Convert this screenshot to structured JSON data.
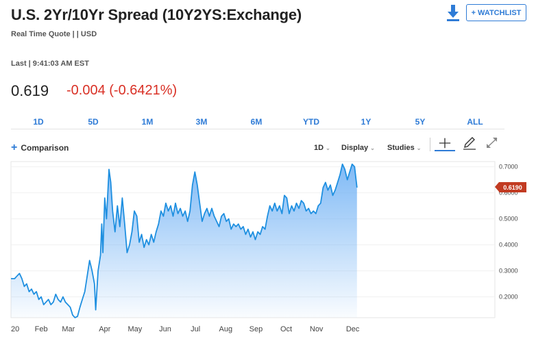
{
  "header": {
    "title": "U.S. 2Yr/10Yr Spread (10Y2YS:Exchange)",
    "subtitle": "Real Time Quote | | USD",
    "watchlist_label": "+ WATCHLIST",
    "download_icon": "download-icon"
  },
  "quote": {
    "last_line": "Last | 9:41:03 AM EST",
    "last_price": "0.619",
    "change": "-0.004 (-0.6421%)",
    "change_color": "#d93025"
  },
  "ranges": [
    "1D",
    "5D",
    "1M",
    "3M",
    "6M",
    "YTD",
    "1Y",
    "5Y",
    "ALL"
  ],
  "toolbar": {
    "comparison_label": "Comparison",
    "interval_label": "1D",
    "display_label": "Display",
    "studies_label": "Studies",
    "crosshair_icon": "crosshair-icon",
    "draw_icon": "pencil-icon",
    "expand_icon": "expand-icon"
  },
  "chart_data": {
    "type": "area",
    "title": "",
    "xlabel": "",
    "ylabel": "",
    "x_tick_labels": [
      "20",
      "Feb",
      "Mar",
      "Apr",
      "May",
      "Jun",
      "Jul",
      "Aug",
      "Sep",
      "Oct",
      "Nov",
      "Dec"
    ],
    "y_tick_labels": [
      "0.2000",
      "0.3000",
      "0.4000",
      "0.5000",
      "0.6000",
      "0.7000"
    ],
    "ylim": [
      0.12,
      0.72
    ],
    "current_value_label": "0.6190",
    "line_color": "#1e8fe0",
    "series": [
      {
        "values": [
          [
            0.0,
            0.27
          ],
          [
            0.6,
            0.27
          ],
          [
            1.0,
            0.28
          ],
          [
            1.4,
            0.29
          ],
          [
            1.8,
            0.27
          ],
          [
            2.2,
            0.24
          ],
          [
            2.6,
            0.25
          ],
          [
            3.0,
            0.22
          ],
          [
            3.4,
            0.23
          ],
          [
            3.8,
            0.21
          ],
          [
            4.2,
            0.22
          ],
          [
            4.6,
            0.19
          ],
          [
            5.0,
            0.2
          ],
          [
            5.4,
            0.17
          ],
          [
            5.8,
            0.18
          ],
          [
            6.2,
            0.19
          ],
          [
            6.6,
            0.17
          ],
          [
            7.0,
            0.18
          ],
          [
            7.4,
            0.21
          ],
          [
            7.8,
            0.19
          ],
          [
            8.2,
            0.18
          ],
          [
            8.6,
            0.2
          ],
          [
            9.0,
            0.18
          ],
          [
            9.4,
            0.17
          ],
          [
            9.8,
            0.16
          ],
          [
            10.2,
            0.13
          ],
          [
            10.6,
            0.12
          ],
          [
            11.0,
            0.125
          ],
          [
            11.4,
            0.16
          ],
          [
            11.8,
            0.19
          ],
          [
            12.2,
            0.22
          ],
          [
            12.6,
            0.28
          ],
          [
            13.0,
            0.34
          ],
          [
            13.4,
            0.3
          ],
          [
            13.8,
            0.25
          ],
          [
            14.0,
            0.15
          ],
          [
            14.4,
            0.3
          ],
          [
            14.8,
            0.36
          ],
          [
            15.0,
            0.48
          ],
          [
            15.2,
            0.37
          ],
          [
            15.5,
            0.58
          ],
          [
            15.8,
            0.5
          ],
          [
            16.2,
            0.69
          ],
          [
            16.5,
            0.64
          ],
          [
            16.8,
            0.53
          ],
          [
            17.2,
            0.45
          ],
          [
            17.6,
            0.55
          ],
          [
            18.0,
            0.47
          ],
          [
            18.4,
            0.58
          ],
          [
            18.8,
            0.48
          ],
          [
            19.2,
            0.37
          ],
          [
            19.6,
            0.4
          ],
          [
            20.0,
            0.45
          ],
          [
            20.4,
            0.53
          ],
          [
            20.8,
            0.51
          ],
          [
            21.2,
            0.41
          ],
          [
            21.6,
            0.44
          ],
          [
            22.0,
            0.39
          ],
          [
            22.4,
            0.42
          ],
          [
            22.8,
            0.4
          ],
          [
            23.2,
            0.44
          ],
          [
            23.6,
            0.41
          ],
          [
            24.0,
            0.45
          ],
          [
            24.4,
            0.48
          ],
          [
            24.8,
            0.53
          ],
          [
            25.2,
            0.51
          ],
          [
            25.6,
            0.56
          ],
          [
            26.0,
            0.53
          ],
          [
            26.4,
            0.55
          ],
          [
            26.8,
            0.51
          ],
          [
            27.2,
            0.56
          ],
          [
            27.6,
            0.52
          ],
          [
            28.0,
            0.54
          ],
          [
            28.4,
            0.51
          ],
          [
            28.8,
            0.53
          ],
          [
            29.2,
            0.49
          ],
          [
            29.6,
            0.53
          ],
          [
            30.0,
            0.63
          ],
          [
            30.4,
            0.68
          ],
          [
            30.8,
            0.63
          ],
          [
            31.2,
            0.56
          ],
          [
            31.6,
            0.49
          ],
          [
            32.0,
            0.52
          ],
          [
            32.4,
            0.54
          ],
          [
            32.8,
            0.51
          ],
          [
            33.2,
            0.54
          ],
          [
            33.6,
            0.51
          ],
          [
            34.0,
            0.49
          ],
          [
            34.4,
            0.47
          ],
          [
            34.8,
            0.51
          ],
          [
            35.2,
            0.52
          ],
          [
            35.6,
            0.49
          ],
          [
            36.0,
            0.5
          ],
          [
            36.4,
            0.46
          ],
          [
            36.8,
            0.48
          ],
          [
            37.2,
            0.47
          ],
          [
            37.6,
            0.48
          ],
          [
            38.0,
            0.46
          ],
          [
            38.4,
            0.47
          ],
          [
            38.8,
            0.44
          ],
          [
            39.2,
            0.46
          ],
          [
            39.6,
            0.43
          ],
          [
            40.0,
            0.45
          ],
          [
            40.4,
            0.42
          ],
          [
            40.8,
            0.45
          ],
          [
            41.2,
            0.44
          ],
          [
            41.6,
            0.47
          ],
          [
            42.0,
            0.46
          ],
          [
            42.4,
            0.51
          ],
          [
            42.8,
            0.55
          ],
          [
            43.2,
            0.53
          ],
          [
            43.6,
            0.56
          ],
          [
            44.0,
            0.53
          ],
          [
            44.4,
            0.55
          ],
          [
            44.8,
            0.52
          ],
          [
            45.2,
            0.59
          ],
          [
            45.6,
            0.58
          ],
          [
            46.0,
            0.52
          ],
          [
            46.4,
            0.55
          ],
          [
            46.8,
            0.53
          ],
          [
            47.2,
            0.56
          ],
          [
            47.6,
            0.54
          ],
          [
            48.0,
            0.57
          ],
          [
            48.4,
            0.56
          ],
          [
            48.8,
            0.53
          ],
          [
            49.2,
            0.54
          ],
          [
            49.6,
            0.52
          ],
          [
            50.0,
            0.53
          ],
          [
            50.4,
            0.52
          ],
          [
            50.8,
            0.55
          ],
          [
            51.2,
            0.56
          ],
          [
            51.6,
            0.62
          ],
          [
            52.0,
            0.64
          ],
          [
            52.4,
            0.61
          ],
          [
            52.8,
            0.63
          ],
          [
            53.2,
            0.59
          ],
          [
            53.6,
            0.61
          ],
          [
            54.0,
            0.64
          ],
          [
            54.4,
            0.67
          ],
          [
            54.8,
            0.71
          ],
          [
            55.2,
            0.69
          ],
          [
            55.6,
            0.65
          ],
          [
            56.0,
            0.68
          ],
          [
            56.4,
            0.71
          ],
          [
            56.8,
            0.7
          ],
          [
            57.2,
            0.62
          ]
        ]
      }
    ]
  }
}
